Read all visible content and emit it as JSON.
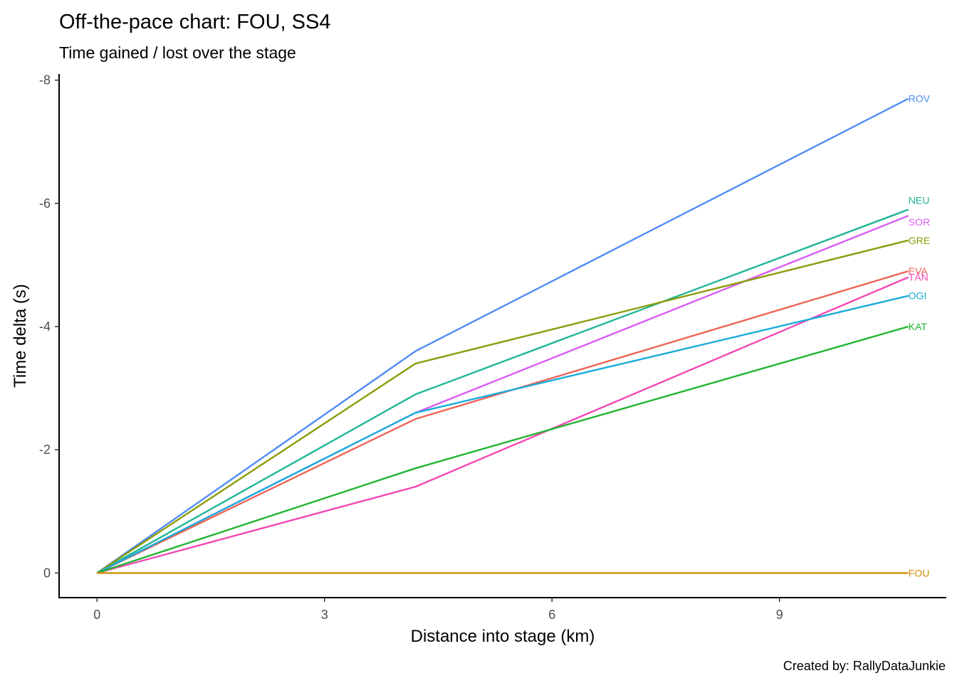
{
  "chart_data": {
    "type": "line",
    "title": "Off-the-pace chart: FOU, SS4",
    "subtitle": "Time gained / lost over the stage",
    "xlabel": "Distance into stage (km)",
    "ylabel": "Time delta (s)",
    "caption": "Created by: RallyDataJunkie",
    "xlim": [
      -0.5,
      11.2
    ],
    "ylim": [
      0.4,
      -8.1
    ],
    "y_reversed": true,
    "xticks": [
      0,
      3,
      6,
      9
    ],
    "yticks": [
      0,
      -2,
      -4,
      -6,
      -8
    ],
    "grid": false,
    "legend": "direct labels at line ends",
    "x": [
      0,
      4.2,
      10.7
    ],
    "series": [
      {
        "name": "ROV",
        "color": "#4f8bf5",
        "values": [
          0,
          -3.6,
          -7.7
        ]
      },
      {
        "name": "NEU",
        "color": "#1fb696",
        "values": [
          0,
          -2.9,
          -5.9
        ]
      },
      {
        "name": "SOR",
        "color": "#d75cf2",
        "values": [
          0,
          -2.6,
          -5.8
        ]
      },
      {
        "name": "GRE",
        "color": "#8c9b0a",
        "values": [
          0,
          -3.4,
          -5.4
        ]
      },
      {
        "name": "EVA",
        "color": "#ee6358",
        "values": [
          0,
          -2.5,
          -4.9
        ]
      },
      {
        "name": "TÄN",
        "color": "#f447b4",
        "values": [
          0,
          -1.4,
          -4.8
        ]
      },
      {
        "name": "OGI",
        "color": "#1aabda",
        "values": [
          0,
          -2.6,
          -4.5
        ]
      },
      {
        "name": "KAT",
        "color": "#22b432",
        "values": [
          0,
          -1.7,
          -4.0
        ]
      },
      {
        "name": "FOU",
        "color": "#d08f00",
        "values": [
          0,
          0,
          0
        ]
      }
    ]
  }
}
